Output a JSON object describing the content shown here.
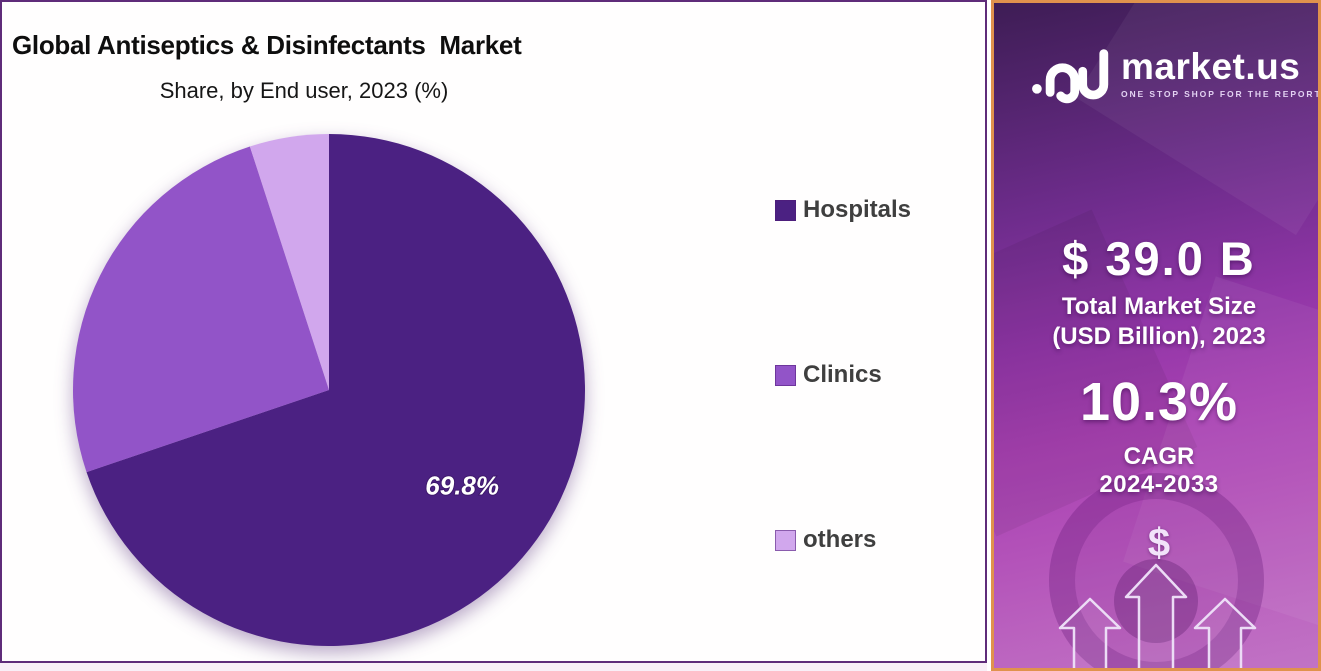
{
  "chart": {
    "title": "Global Antiseptics & Disinfectants  Market",
    "subtitle": "Share, by End user, 2023 (%)"
  },
  "chart_data": {
    "type": "pie",
    "title": "Global Antiseptics & Disinfectants Market",
    "subtitle": "Share, by End user, 2023 (%)",
    "labels": [
      "Hospitals",
      "Clinics",
      "others"
    ],
    "values": [
      69.8,
      25.2,
      5.0
    ],
    "colors": [
      "#4B2182",
      "#9254C8",
      "#D1A7ED"
    ],
    "slice_labels": [
      "69.8%",
      "",
      ""
    ],
    "start_angle_deg": 0,
    "direction": "clockwise",
    "legend_position": "right",
    "label_color": "#ffffff"
  },
  "sidebar": {
    "logo": {
      "brand": "market.us",
      "tagline": "ONE STOP SHOP FOR THE REPORTS"
    },
    "market_size_value": "$ 39.0 B",
    "market_size_caption_line1": "Total Market Size",
    "market_size_caption_line2": "(USD Billion), 2023",
    "cagr_value": "10.3%",
    "cagr_label": "CAGR",
    "cagr_years": "2024-2033",
    "dollar_symbol": "$",
    "colors": {
      "border": "#e0924d",
      "gradient_top": "#3e1d55",
      "gradient_bottom": "#c173c5",
      "text": "#ffffff"
    }
  }
}
